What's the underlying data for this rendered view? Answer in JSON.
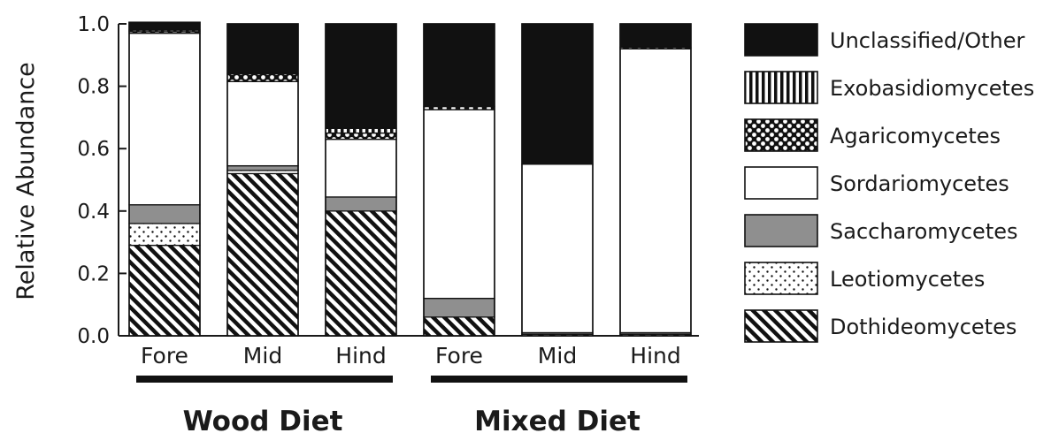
{
  "chart_data": {
    "type": "bar",
    "stacked": true,
    "ylabel": "Relative Abundance",
    "ylim": [
      0,
      1.0
    ],
    "yticks": [
      "0.0",
      "0.2",
      "0.4",
      "0.6",
      "0.8",
      "1.0"
    ],
    "categories": [
      "Fore",
      "Mid",
      "Hind",
      "Fore",
      "Mid",
      "Hind"
    ],
    "groups": [
      {
        "label": "Wood Diet",
        "categories": [
          0,
          1,
          2
        ]
      },
      {
        "label": "Mixed Diet",
        "categories": [
          3,
          4,
          5
        ]
      }
    ],
    "series": [
      {
        "name": "Dothideomycetes",
        "pattern": "diagonal-hatch",
        "values": [
          0.29,
          0.52,
          0.4,
          0.06,
          0.005,
          0.005
        ]
      },
      {
        "name": "Leotiomycetes",
        "pattern": "dots",
        "values": [
          0.07,
          0.01,
          0.0,
          0.0,
          0.0,
          0.0
        ]
      },
      {
        "name": "Saccharomycetes",
        "pattern": "solid-gray",
        "values": [
          0.06,
          0.015,
          0.045,
          0.06,
          0.005,
          0.005
        ]
      },
      {
        "name": "Sordariomycetes",
        "pattern": "white",
        "values": [
          0.55,
          0.27,
          0.185,
          0.605,
          0.54,
          0.91
        ]
      },
      {
        "name": "Agaricomycetes",
        "pattern": "checker",
        "values": [
          0.005,
          0.025,
          0.02,
          0.01,
          0.0,
          0.005
        ]
      },
      {
        "name": "Exobasidiomycetes",
        "pattern": "vertical-lines",
        "values": [
          0.005,
          0.0,
          0.015,
          0.0,
          0.0,
          0.0
        ]
      },
      {
        "name": "Unclassified/Other",
        "pattern": "solid-black",
        "values": [
          0.025,
          0.16,
          0.335,
          0.265,
          0.45,
          0.075
        ]
      }
    ],
    "legend_order": [
      "Unclassified/Other",
      "Exobasidiomycetes",
      "Agaricomycetes",
      "Sordariomycetes",
      "Saccharomycetes",
      "Leotiomycetes",
      "Dothideomycetes"
    ],
    "legend_position": "right",
    "grid": false,
    "colors": {
      "black": "#111111",
      "gray": "#8f8f8f",
      "white": "#ffffff"
    }
  }
}
